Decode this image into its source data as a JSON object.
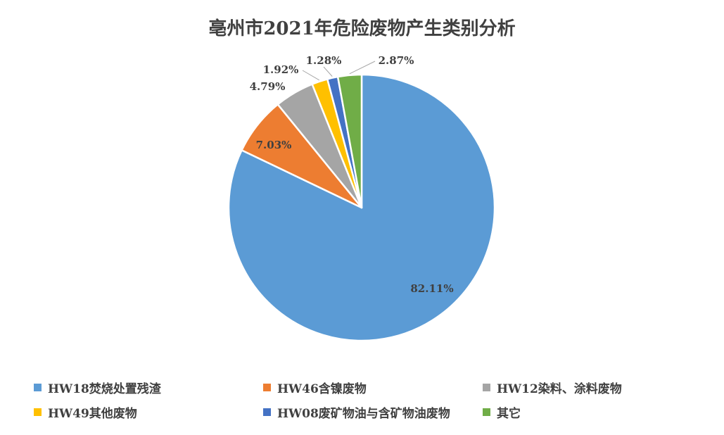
{
  "chart_data": {
    "type": "pie",
    "title": "亳州市2021年危险废物产生类别分析",
    "slices": [
      {
        "name": "HW18焚烧处置残渣",
        "value": 82.11,
        "label": "82.11%",
        "color": "#5B9BD5"
      },
      {
        "name": "HW46含镍废物",
        "value": 7.03,
        "label": "7.03%",
        "color": "#ED7D31"
      },
      {
        "name": "HW12染料、涂料废物",
        "value": 4.79,
        "label": "4.79%",
        "color": "#A5A5A5"
      },
      {
        "name": "HW49其他废物",
        "value": 1.92,
        "label": "1.92%",
        "color": "#FFC000"
      },
      {
        "name": "HW08废矿物油与含矿物油废物",
        "value": 1.28,
        "label": "1.28%",
        "color": "#4472C4"
      },
      {
        "name": "其它",
        "value": 2.87,
        "label": "2.87%",
        "color": "#70AD47"
      }
    ],
    "legend_position": "bottom"
  }
}
